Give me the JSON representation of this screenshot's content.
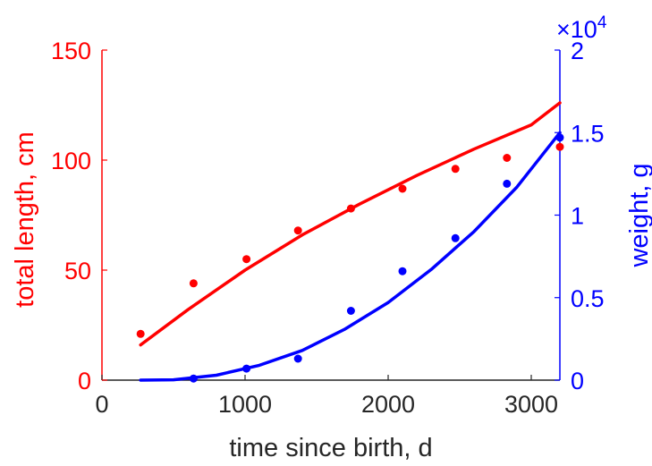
{
  "chart_data": {
    "type": "line",
    "title": "",
    "xlabel": "time since birth, d",
    "xlim": [
      0,
      3200
    ],
    "x_ticks": [
      0,
      1000,
      2000,
      3000
    ],
    "y_left": {
      "label": "total length, cm",
      "color": "#ff0000",
      "lim": [
        0,
        150
      ],
      "ticks": [
        0,
        50,
        100,
        150
      ]
    },
    "y_right": {
      "label": "weight, g",
      "color": "#0000ff",
      "lim": [
        0,
        2
      ],
      "ticks": [
        "0",
        "0.5",
        "1",
        "1.5",
        "2"
      ],
      "tick_values": [
        0,
        0.5,
        1,
        1.5,
        2
      ],
      "exponent_label": "×10",
      "exponent_power": "4"
    },
    "series": [
      {
        "axis": "left",
        "kind": "scatter",
        "color": "#ff0000",
        "x": [
          270,
          640,
          1010,
          1370,
          1740,
          2100,
          2470,
          2830,
          3200
        ],
        "y": [
          21,
          44,
          55,
          68,
          78,
          87,
          96,
          101,
          106
        ]
      },
      {
        "axis": "left",
        "kind": "line",
        "color": "#ff0000",
        "x": [
          270,
          600,
          1000,
          1400,
          1800,
          2200,
          2600,
          3000,
          3200
        ],
        "y": [
          16,
          32,
          50,
          66,
          80,
          93,
          105,
          116,
          126
        ]
      },
      {
        "axis": "right",
        "kind": "scatter",
        "color": "#0000ff",
        "x": [
          640,
          1010,
          1370,
          1740,
          2100,
          2470,
          2830,
          3200
        ],
        "y": [
          0.01,
          0.07,
          0.13,
          0.42,
          0.66,
          0.86,
          1.19,
          1.47
        ]
      },
      {
        "axis": "right",
        "kind": "line",
        "color": "#0000ff",
        "x": [
          270,
          500,
          800,
          1100,
          1400,
          1700,
          2000,
          2300,
          2600,
          2900,
          3200
        ],
        "y": [
          0,
          0.002,
          0.03,
          0.09,
          0.18,
          0.31,
          0.47,
          0.67,
          0.9,
          1.17,
          1.5
        ]
      }
    ]
  }
}
